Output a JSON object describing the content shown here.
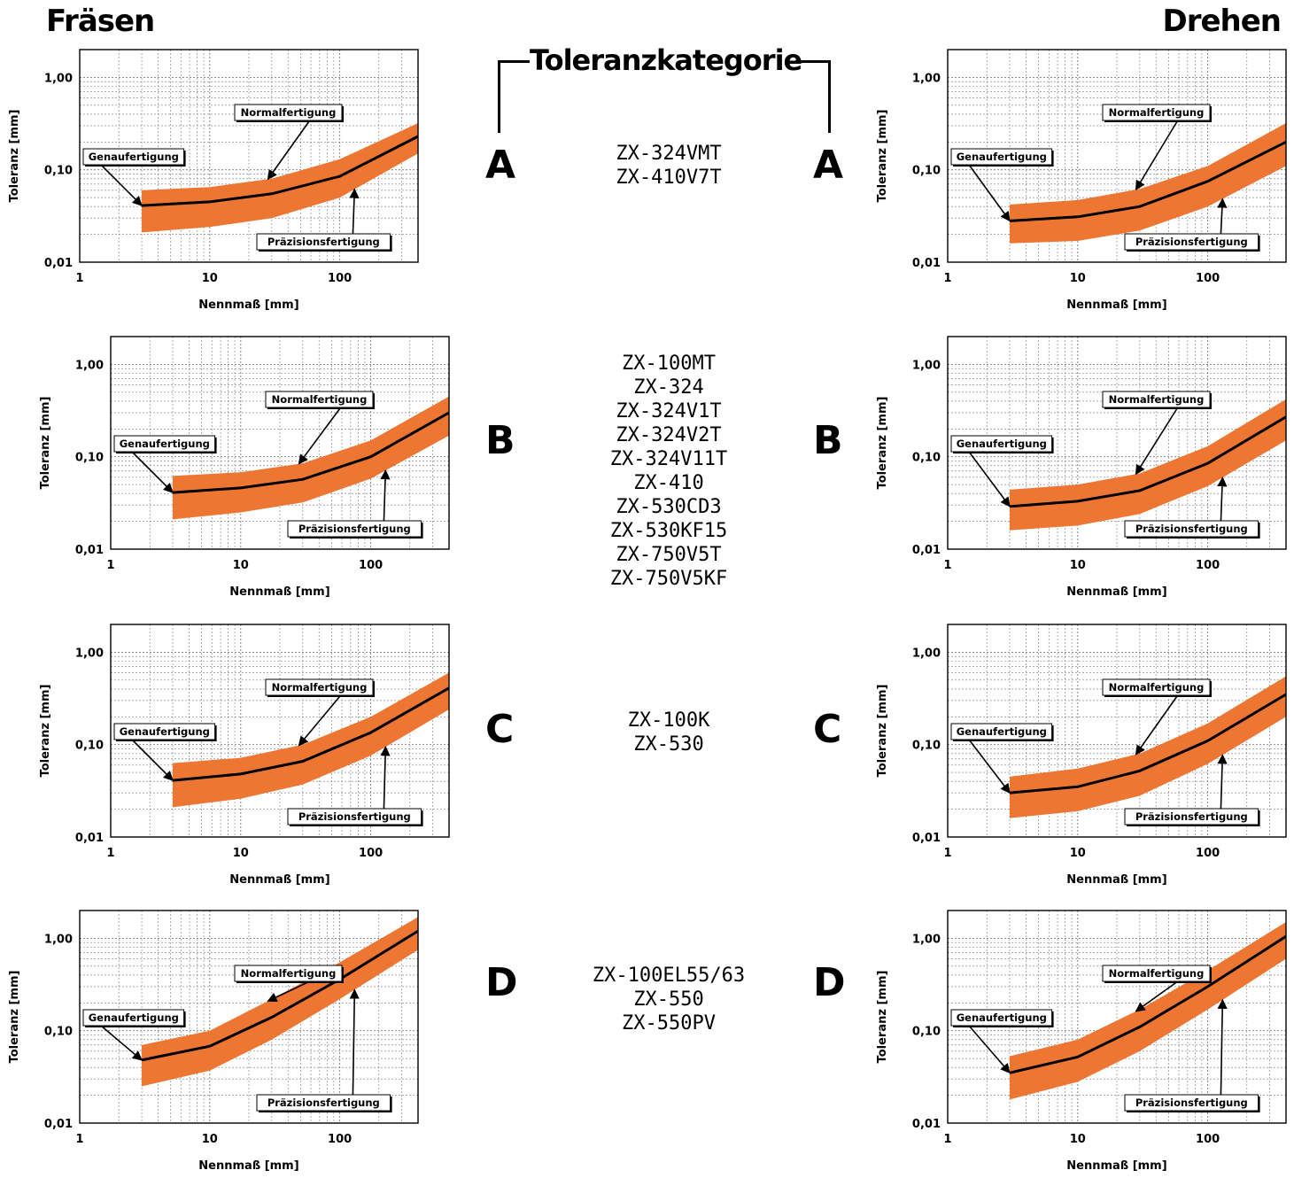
{
  "headings": {
    "left": "Fräsen",
    "right": "Drehen",
    "center": "Toleranzkategorie"
  },
  "colors": {
    "band": "#ee7633",
    "line": "#000000",
    "grid": "#7a7a7a"
  },
  "categories": [
    {
      "letter": "A",
      "models": [
        "ZX-324VMT",
        "ZX-410V7T"
      ]
    },
    {
      "letter": "B",
      "models": [
        "ZX-100MT",
        "ZX-324",
        "ZX-324V1T",
        "ZX-324V2T",
        "ZX-324V11T",
        "ZX-410",
        "ZX-530CD3",
        "ZX-530KF15",
        "ZX-750V5T",
        "ZX-750V5KF"
      ]
    },
    {
      "letter": "C",
      "models": [
        "ZX-100K",
        "ZX-530"
      ]
    },
    {
      "letter": "D",
      "models": [
        "ZX-100EL55/63",
        "ZX-550",
        "ZX-550PV"
      ]
    }
  ],
  "chart_data": [
    {
      "id": "A-fraesen",
      "process": "Fräsen",
      "category": "A",
      "type": "area",
      "xscale": "log",
      "yscale": "log",
      "xlabel": "Nennmaß [mm]",
      "ylabel": "Toleranz [mm]",
      "xlim": [
        1,
        400
      ],
      "ylim": [
        0.01,
        2
      ],
      "xticks": [
        "1",
        "10",
        "100"
      ],
      "yticks": [
        "0,01",
        "0,10",
        "1,00"
      ],
      "grid": true,
      "annotations": [
        "Normalfertigung",
        "Genaufertigung",
        "Präzisionsfertigung"
      ],
      "series": [
        {
          "role": "upper",
          "x": [
            3,
            10,
            30,
            100,
            400
          ],
          "y": [
            0.06,
            0.065,
            0.08,
            0.13,
            0.32
          ]
        },
        {
          "role": "middle",
          "x": [
            3,
            10,
            30,
            100,
            400
          ],
          "y": [
            0.041,
            0.045,
            0.055,
            0.085,
            0.23
          ]
        },
        {
          "role": "lower",
          "x": [
            3,
            10,
            30,
            100,
            400
          ],
          "y": [
            0.021,
            0.024,
            0.03,
            0.05,
            0.15
          ]
        }
      ]
    },
    {
      "id": "A-drehen",
      "process": "Drehen",
      "category": "A",
      "type": "area",
      "xscale": "log",
      "yscale": "log",
      "xlabel": "Nennmaß [mm]",
      "ylabel": "Toleranz [mm]",
      "xlim": [
        1,
        400
      ],
      "ylim": [
        0.01,
        2
      ],
      "xticks": [
        "1",
        "10",
        "100"
      ],
      "yticks": [
        "0,01",
        "0,10",
        "1,00"
      ],
      "grid": true,
      "annotations": [
        "Normalfertigung",
        "Genaufertigung",
        "Präzisionsfertigung"
      ],
      "series": [
        {
          "role": "upper",
          "x": [
            3,
            10,
            30,
            100,
            400
          ],
          "y": [
            0.042,
            0.047,
            0.062,
            0.11,
            0.32
          ]
        },
        {
          "role": "middle",
          "x": [
            3,
            10,
            30,
            100,
            400
          ],
          "y": [
            0.028,
            0.031,
            0.04,
            0.075,
            0.2
          ]
        },
        {
          "role": "lower",
          "x": [
            3,
            10,
            30,
            100,
            400
          ],
          "y": [
            0.016,
            0.017,
            0.022,
            0.04,
            0.11
          ]
        }
      ]
    },
    {
      "id": "B-fraesen",
      "process": "Fräsen",
      "category": "B",
      "type": "area",
      "xscale": "log",
      "yscale": "log",
      "xlabel": "Nennmaß [mm]",
      "ylabel": "Toleranz [mm]",
      "xlim": [
        1,
        400
      ],
      "ylim": [
        0.01,
        2
      ],
      "xticks": [
        "1",
        "10",
        "100"
      ],
      "yticks": [
        "0,01",
        "0,10",
        "1,00"
      ],
      "grid": true,
      "annotations": [
        "Normalfertigung",
        "Genaufertigung",
        "Präzisionsfertigung"
      ],
      "series": [
        {
          "role": "upper",
          "x": [
            3,
            10,
            30,
            100,
            400
          ],
          "y": [
            0.062,
            0.068,
            0.085,
            0.15,
            0.45
          ]
        },
        {
          "role": "middle",
          "x": [
            3,
            10,
            30,
            100,
            400
          ],
          "y": [
            0.041,
            0.046,
            0.057,
            0.1,
            0.3
          ]
        },
        {
          "role": "lower",
          "x": [
            3,
            10,
            30,
            100,
            400
          ],
          "y": [
            0.021,
            0.025,
            0.032,
            0.058,
            0.17
          ]
        }
      ]
    },
    {
      "id": "B-drehen",
      "process": "Drehen",
      "category": "B",
      "type": "area",
      "xscale": "log",
      "yscale": "log",
      "xlabel": "Nennmaß [mm]",
      "ylabel": "Toleranz [mm]",
      "xlim": [
        1,
        400
      ],
      "ylim": [
        0.01,
        2
      ],
      "xticks": [
        "1",
        "10",
        "100"
      ],
      "yticks": [
        "0,01",
        "0,10",
        "1,00"
      ],
      "grid": true,
      "annotations": [
        "Normalfertigung",
        "Genaufertigung",
        "Präzisionsfertigung"
      ],
      "series": [
        {
          "role": "upper",
          "x": [
            3,
            10,
            30,
            100,
            400
          ],
          "y": [
            0.044,
            0.05,
            0.066,
            0.13,
            0.42
          ]
        },
        {
          "role": "middle",
          "x": [
            3,
            10,
            30,
            100,
            400
          ],
          "y": [
            0.029,
            0.033,
            0.043,
            0.085,
            0.27
          ]
        },
        {
          "role": "lower",
          "x": [
            3,
            10,
            30,
            100,
            400
          ],
          "y": [
            0.016,
            0.018,
            0.024,
            0.048,
            0.15
          ]
        }
      ]
    },
    {
      "id": "C-fraesen",
      "process": "Fräsen",
      "category": "C",
      "type": "area",
      "xscale": "log",
      "yscale": "log",
      "xlabel": "Nennmaß [mm]",
      "ylabel": "Toleranz [mm]",
      "xlim": [
        1,
        400
      ],
      "ylim": [
        0.01,
        2
      ],
      "xticks": [
        "1",
        "10",
        "100"
      ],
      "yticks": [
        "0,01",
        "0,10",
        "1,00"
      ],
      "grid": true,
      "annotations": [
        "Normalfertigung",
        "Genaufertigung",
        "Präzisionsfertigung"
      ],
      "series": [
        {
          "role": "upper",
          "x": [
            3,
            10,
            30,
            100,
            400
          ],
          "y": [
            0.063,
            0.072,
            0.1,
            0.2,
            0.6
          ]
        },
        {
          "role": "middle",
          "x": [
            3,
            10,
            30,
            100,
            400
          ],
          "y": [
            0.041,
            0.048,
            0.066,
            0.135,
            0.41
          ]
        },
        {
          "role": "lower",
          "x": [
            3,
            10,
            30,
            100,
            400
          ],
          "y": [
            0.021,
            0.026,
            0.037,
            0.076,
            0.24
          ]
        }
      ]
    },
    {
      "id": "C-drehen",
      "process": "Drehen",
      "category": "C",
      "type": "area",
      "xscale": "log",
      "yscale": "log",
      "xlabel": "Nennmaß [mm]",
      "ylabel": "Toleranz [mm]",
      "xlim": [
        1,
        400
      ],
      "ylim": [
        0.01,
        2
      ],
      "xticks": [
        "1",
        "10",
        "100"
      ],
      "yticks": [
        "0,01",
        "0,10",
        "1,00"
      ],
      "grid": true,
      "annotations": [
        "Normalfertigung",
        "Genaufertigung",
        "Präzisionsfertigung"
      ],
      "series": [
        {
          "role": "upper",
          "x": [
            3,
            10,
            30,
            100,
            400
          ],
          "y": [
            0.045,
            0.055,
            0.08,
            0.17,
            0.55
          ]
        },
        {
          "role": "middle",
          "x": [
            3,
            10,
            30,
            100,
            400
          ],
          "y": [
            0.03,
            0.035,
            0.052,
            0.11,
            0.35
          ]
        },
        {
          "role": "lower",
          "x": [
            3,
            10,
            30,
            100,
            400
          ],
          "y": [
            0.016,
            0.019,
            0.028,
            0.062,
            0.2
          ]
        }
      ]
    },
    {
      "id": "D-fraesen",
      "process": "Fräsen",
      "category": "D",
      "type": "area",
      "xscale": "log",
      "yscale": "log",
      "xlabel": "Nennmaß [mm]",
      "ylabel": "Toleranz [mm]",
      "xlim": [
        1,
        400
      ],
      "ylim": [
        0.01,
        2
      ],
      "xticks": [
        "1",
        "10",
        "100"
      ],
      "yticks": [
        "0,01",
        "0,10",
        "1,00"
      ],
      "grid": true,
      "annotations": [
        "Normalfertigung",
        "Genaufertigung",
        "Präzisionsfertigung"
      ],
      "series": [
        {
          "role": "upper",
          "x": [
            3,
            10,
            30,
            100,
            400
          ],
          "y": [
            0.07,
            0.1,
            0.22,
            0.55,
            1.7
          ]
        },
        {
          "role": "middle",
          "x": [
            3,
            10,
            30,
            100,
            400
          ],
          "y": [
            0.048,
            0.068,
            0.14,
            0.36,
            1.2
          ]
        },
        {
          "role": "lower",
          "x": [
            3,
            10,
            30,
            100,
            400
          ],
          "y": [
            0.025,
            0.037,
            0.08,
            0.22,
            0.75
          ]
        }
      ]
    },
    {
      "id": "D-drehen",
      "process": "Drehen",
      "category": "D",
      "type": "area",
      "xscale": "log",
      "yscale": "log",
      "xlabel": "Nennmaß [mm]",
      "ylabel": "Toleranz [mm]",
      "xlim": [
        1,
        400
      ],
      "ylim": [
        0.01,
        2
      ],
      "xticks": [
        "1",
        "10",
        "100"
      ],
      "yticks": [
        "0,01",
        "0,10",
        "1,00"
      ],
      "grid": true,
      "annotations": [
        "Normalfertigung",
        "Genaufertigung",
        "Präzisionsfertigung"
      ],
      "series": [
        {
          "role": "upper",
          "x": [
            3,
            10,
            30,
            100,
            400
          ],
          "y": [
            0.053,
            0.08,
            0.17,
            0.45,
            1.5
          ]
        },
        {
          "role": "middle",
          "x": [
            3,
            10,
            30,
            100,
            400
          ],
          "y": [
            0.035,
            0.052,
            0.11,
            0.3,
            1.05
          ]
        },
        {
          "role": "lower",
          "x": [
            3,
            10,
            30,
            100,
            400
          ],
          "y": [
            0.018,
            0.028,
            0.06,
            0.17,
            0.6
          ]
        }
      ]
    }
  ]
}
